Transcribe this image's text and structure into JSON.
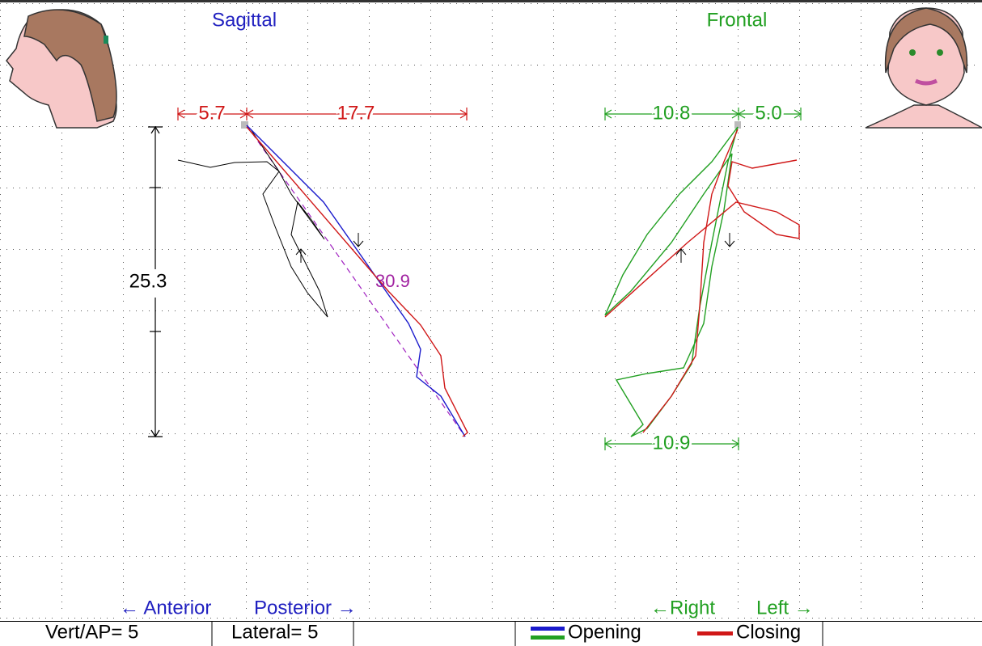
{
  "sagittal": {
    "title": "Sagittal",
    "anterior": "5.7",
    "posterior": "17.7",
    "vertical": "25.3",
    "path_length": "30.9",
    "direction_left": "← Anterior",
    "direction_right": "Posterior →"
  },
  "frontal": {
    "title": "Frontal",
    "right_top": "10.8",
    "left_top": "5.0",
    "right_bottom": "10.9",
    "direction_left": "←Right",
    "direction_right": "Left →"
  },
  "status_bar": {
    "vert_ap": "Vert/AP= 5",
    "lateral": "Lateral= 5",
    "legend": [
      {
        "label": "Opening"
      },
      {
        "label": "Closing"
      }
    ]
  }
}
